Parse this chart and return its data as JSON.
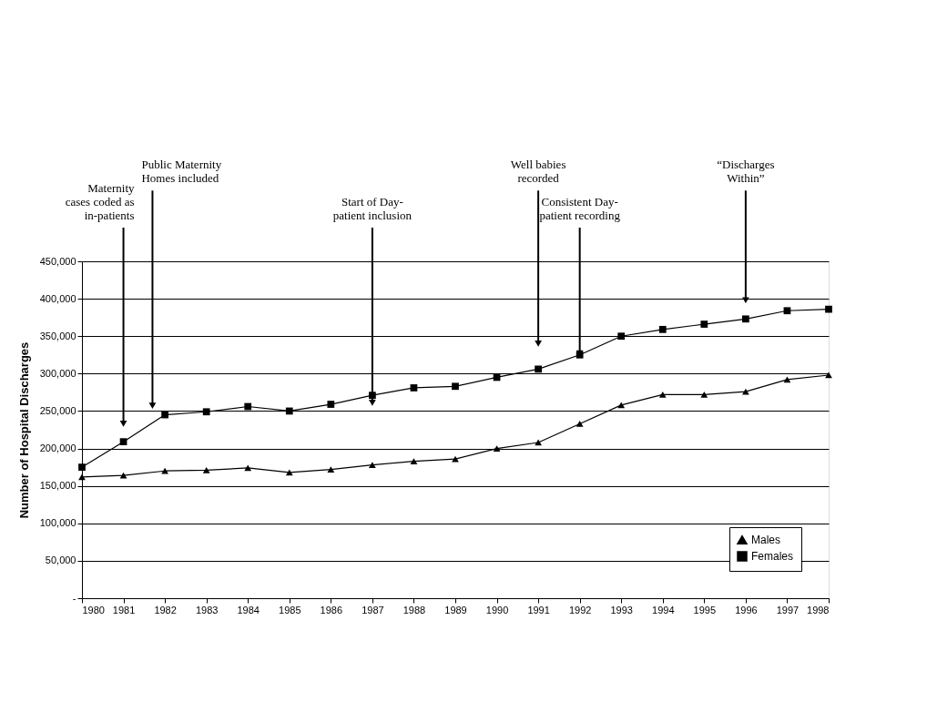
{
  "chart_data": {
    "type": "line",
    "ylabel": "Number of Hospital Discharges",
    "x": [
      1980,
      1981,
      1982,
      1983,
      1984,
      1985,
      1986,
      1987,
      1988,
      1989,
      1990,
      1991,
      1992,
      1993,
      1994,
      1995,
      1996,
      1997,
      1998
    ],
    "series": [
      {
        "name": "Males",
        "color": "#000000",
        "marker": "triangle",
        "values": [
          162000,
          164000,
          170000,
          171000,
          174000,
          168000,
          172000,
          178000,
          183000,
          186000,
          200000,
          208000,
          233000,
          258000,
          272000,
          272000,
          276000,
          292000,
          298000
        ]
      },
      {
        "name": "Females",
        "color": "#000000",
        "marker": "square",
        "values": [
          175000,
          209000,
          245000,
          249000,
          256000,
          250000,
          259000,
          271000,
          281000,
          283000,
          295000,
          306000,
          325000,
          350000,
          359000,
          366000,
          373000,
          384000,
          386000
        ]
      }
    ],
    "xlim": [
      1980,
      1998
    ],
    "xticks": [
      1980,
      1981,
      1982,
      1983,
      1984,
      1985,
      1986,
      1987,
      1988,
      1989,
      1990,
      1991,
      1992,
      1993,
      1994,
      1995,
      1996,
      1997,
      1998
    ],
    "ylim": [
      0,
      450000
    ],
    "yticks": [
      {
        "value": 0,
        "label": "-"
      },
      {
        "value": 50000,
        "label": "50,000"
      },
      {
        "value": 100000,
        "label": "100,000"
      },
      {
        "value": 150000,
        "label": "150,000"
      },
      {
        "value": 200000,
        "label": "200,000"
      },
      {
        "value": 250000,
        "label": "250,000"
      },
      {
        "value": 300000,
        "label": "300,000"
      },
      {
        "value": 350000,
        "label": "350,000"
      },
      {
        "value": 400000,
        "label": "400,000"
      },
      {
        "value": 450000,
        "label": "450,000"
      }
    ],
    "grid": "y",
    "legend": "bottom right",
    "line_style": "solid",
    "annotations": [
      {
        "text": "Maternity\ncases coded as\nin-patients",
        "x": 1981,
        "y": 233000
      },
      {
        "text": "Public Maternity\nHomes included",
        "x": 1981.7,
        "y": 257000
      },
      {
        "text": "Start of Day-\npatient inclusion",
        "x": 1987,
        "y": 261000
      },
      {
        "text": "Well babies\nrecorded",
        "x": 1991,
        "y": 340000
      },
      {
        "text": "Consistent Day-\npatient recording",
        "x": 1992,
        "y": 327000
      },
      {
        "text": "“Discharges\nWithin”",
        "x": 1996,
        "y": 398000
      }
    ]
  }
}
